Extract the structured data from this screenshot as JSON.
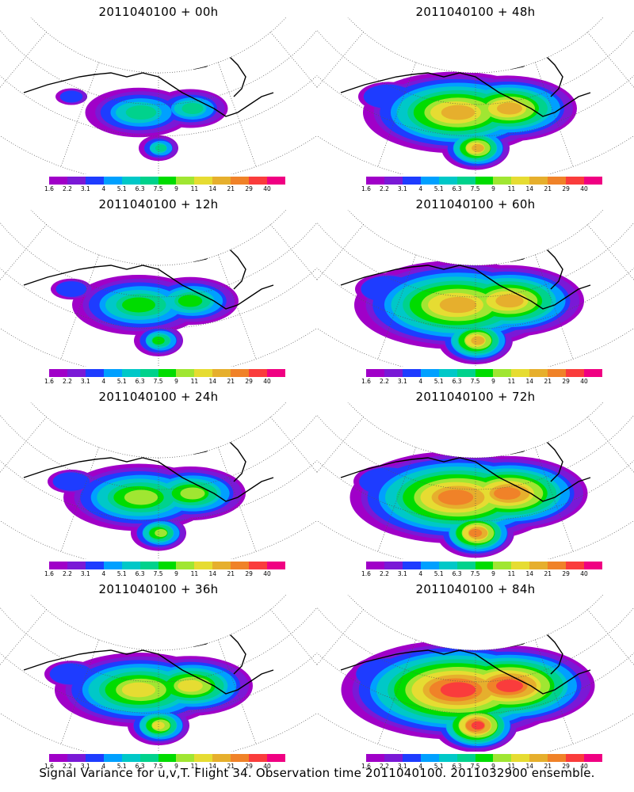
{
  "colorbar": {
    "ticks": [
      "1.6",
      "2.2",
      "3.1",
      "4",
      "5.1",
      "6.3",
      "7.5",
      "9",
      "11",
      "14",
      "21",
      "29",
      "40"
    ],
    "colors": [
      "#a000c8",
      "#7a19d6",
      "#1e3cff",
      "#00a0ff",
      "#00c8c8",
      "#00d28c",
      "#00dc00",
      "#a0e632",
      "#e6dc32",
      "#e6af2d",
      "#f08228",
      "#fa3c3c",
      "#f00082"
    ]
  },
  "panels": [
    {
      "title": "2011040100 + 00h",
      "intensity": 0.25
    },
    {
      "title": "2011040100 + 48h",
      "intensity": 0.7
    },
    {
      "title": "2011040100 + 12h",
      "intensity": 0.4
    },
    {
      "title": "2011040100 + 60h",
      "intensity": 0.8
    },
    {
      "title": "2011040100 + 24h",
      "intensity": 0.5
    },
    {
      "title": "2011040100 + 72h",
      "intensity": 0.85
    },
    {
      "title": "2011040100 + 36h",
      "intensity": 0.6
    },
    {
      "title": "2011040100 + 84h",
      "intensity": 0.95
    }
  ],
  "caption": "Signal Variance for u,v,T. Flight 34. Observation time 2011040100. 2011032900 ensemble."
}
